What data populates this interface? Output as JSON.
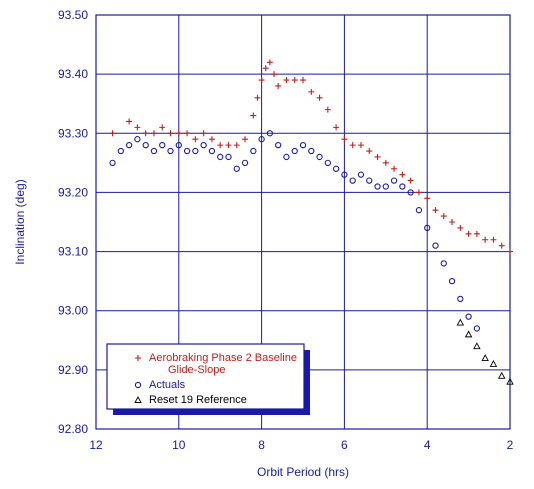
{
  "chart_data": {
    "type": "scatter",
    "xlabel": "Orbit Period (hrs)",
    "ylabel": "Inclination (deg)",
    "xlim": [
      12,
      2
    ],
    "ylim": [
      92.8,
      93.5
    ],
    "x_reversed": true,
    "x_ticks": [
      "12",
      "10",
      "8",
      "6",
      "4",
      "2"
    ],
    "y_ticks": [
      "92.80",
      "92.90",
      "93.00",
      "93.10",
      "93.20",
      "93.30",
      "93.40",
      "93.50"
    ],
    "grid": true,
    "legend_position": "bottom-left",
    "series": [
      {
        "name": "Aerobraking Phase 2 Baseline",
        "name_line2": "Glide-Slope",
        "marker": "plus",
        "color": "#c0201a",
        "points": [
          [
            11.6,
            93.3
          ],
          [
            11.2,
            93.32
          ],
          [
            11.0,
            93.31
          ],
          [
            10.8,
            93.3
          ],
          [
            10.6,
            93.3
          ],
          [
            10.4,
            93.31
          ],
          [
            10.2,
            93.3
          ],
          [
            10.0,
            93.3
          ],
          [
            9.8,
            93.3
          ],
          [
            9.6,
            93.29
          ],
          [
            9.4,
            93.3
          ],
          [
            9.2,
            93.29
          ],
          [
            9.0,
            93.28
          ],
          [
            8.8,
            93.28
          ],
          [
            8.6,
            93.28
          ],
          [
            8.4,
            93.29
          ],
          [
            8.2,
            93.33
          ],
          [
            8.1,
            93.36
          ],
          [
            8.0,
            93.39
          ],
          [
            7.9,
            93.41
          ],
          [
            7.8,
            93.42
          ],
          [
            7.7,
            93.4
          ],
          [
            7.6,
            93.38
          ],
          [
            7.4,
            93.39
          ],
          [
            7.2,
            93.39
          ],
          [
            7.0,
            93.39
          ],
          [
            6.8,
            93.37
          ],
          [
            6.6,
            93.36
          ],
          [
            6.4,
            93.34
          ],
          [
            6.2,
            93.31
          ],
          [
            6.0,
            93.29
          ],
          [
            5.8,
            93.28
          ],
          [
            5.6,
            93.28
          ],
          [
            5.4,
            93.27
          ],
          [
            5.2,
            93.26
          ],
          [
            5.0,
            93.25
          ],
          [
            4.8,
            93.24
          ],
          [
            4.6,
            93.23
          ],
          [
            4.4,
            93.22
          ],
          [
            4.2,
            93.2
          ],
          [
            4.0,
            93.19
          ],
          [
            3.8,
            93.17
          ],
          [
            3.6,
            93.16
          ],
          [
            3.4,
            93.15
          ],
          [
            3.2,
            93.14
          ],
          [
            3.0,
            93.13
          ],
          [
            2.8,
            93.13
          ],
          [
            2.6,
            93.12
          ],
          [
            2.4,
            93.12
          ],
          [
            2.2,
            93.11
          ],
          [
            2.0,
            93.1
          ]
        ]
      },
      {
        "name": "Actuals",
        "marker": "circle",
        "color": "#1a1aa8",
        "points": [
          [
            11.6,
            93.25
          ],
          [
            11.4,
            93.27
          ],
          [
            11.2,
            93.28
          ],
          [
            11.0,
            93.29
          ],
          [
            10.8,
            93.28
          ],
          [
            10.6,
            93.27
          ],
          [
            10.4,
            93.28
          ],
          [
            10.2,
            93.27
          ],
          [
            10.0,
            93.28
          ],
          [
            9.8,
            93.27
          ],
          [
            9.6,
            93.27
          ],
          [
            9.4,
            93.28
          ],
          [
            9.2,
            93.27
          ],
          [
            9.0,
            93.26
          ],
          [
            8.8,
            93.26
          ],
          [
            8.6,
            93.24
          ],
          [
            8.4,
            93.25
          ],
          [
            8.2,
            93.27
          ],
          [
            8.0,
            93.29
          ],
          [
            7.8,
            93.3
          ],
          [
            7.6,
            93.28
          ],
          [
            7.4,
            93.26
          ],
          [
            7.2,
            93.27
          ],
          [
            7.0,
            93.28
          ],
          [
            6.8,
            93.27
          ],
          [
            6.6,
            93.26
          ],
          [
            6.4,
            93.25
          ],
          [
            6.2,
            93.24
          ],
          [
            6.0,
            93.23
          ],
          [
            5.8,
            93.22
          ],
          [
            5.6,
            93.23
          ],
          [
            5.4,
            93.22
          ],
          [
            5.2,
            93.21
          ],
          [
            5.0,
            93.21
          ],
          [
            4.8,
            93.22
          ],
          [
            4.6,
            93.21
          ],
          [
            4.4,
            93.2
          ],
          [
            4.2,
            93.17
          ],
          [
            4.0,
            93.14
          ],
          [
            3.8,
            93.11
          ],
          [
            3.6,
            93.08
          ],
          [
            3.4,
            93.05
          ],
          [
            3.2,
            93.02
          ],
          [
            3.0,
            92.99
          ],
          [
            2.8,
            92.97
          ]
        ]
      },
      {
        "name": "Reset 19 Reference",
        "marker": "triangle",
        "color": "#000000",
        "points": [
          [
            3.2,
            92.98
          ],
          [
            3.0,
            92.96
          ],
          [
            2.8,
            92.94
          ],
          [
            2.6,
            92.92
          ],
          [
            2.4,
            92.91
          ],
          [
            2.2,
            92.89
          ],
          [
            2.0,
            92.88
          ]
        ]
      }
    ]
  }
}
